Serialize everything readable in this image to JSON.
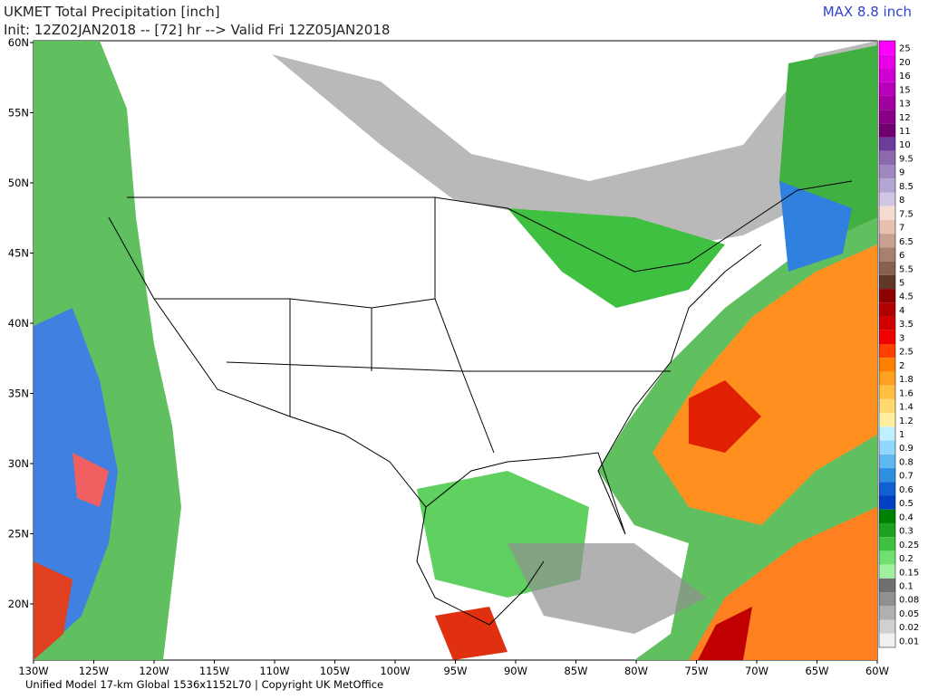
{
  "header": {
    "title": "UKMET Total Precipitation [inch]",
    "init": "Init: 12Z02JAN2018 -- [72] hr --> Valid Fri 12Z05JAN2018",
    "max": "MAX 8.8 inch"
  },
  "lat_labels": [
    "60N",
    "55N",
    "50N",
    "45N",
    "40N",
    "35N",
    "30N",
    "25N",
    "20N"
  ],
  "lon_labels": [
    "130W",
    "125W",
    "120W",
    "115W",
    "110W",
    "105W",
    "100W",
    "95W",
    "90W",
    "85W",
    "80W",
    "75W",
    "70W",
    "65W",
    "60W"
  ],
  "colorbar": {
    "labels": [
      "25",
      "20",
      "16",
      "15",
      "13",
      "12",
      "11",
      "10",
      "9.5",
      "9",
      "8.5",
      "8",
      "7.5",
      "7",
      "6.5",
      "6",
      "5.5",
      "5",
      "4.5",
      "4",
      "3.5",
      "3",
      "2.5",
      "2",
      "1.8",
      "1.6",
      "1.4",
      "1.2",
      "1",
      "0.9",
      "0.8",
      "0.7",
      "0.6",
      "0.5",
      "0.4",
      "0.3",
      "0.25",
      "0.2",
      "0.15",
      "0.1",
      "0.08",
      "0.05",
      "0.02",
      "0.01"
    ],
    "colors": [
      "#ff00ff",
      "#e800e8",
      "#d000d0",
      "#b800b8",
      "#a000a0",
      "#880088",
      "#700070",
      "#6a3d9a",
      "#8a6aaa",
      "#9f88bf",
      "#b4a6d2",
      "#d0c6e4",
      "#f4dcd0",
      "#e8c0b0",
      "#c8a090",
      "#a88070",
      "#886050",
      "#603828",
      "#8b0000",
      "#b00000",
      "#d00000",
      "#f00000",
      "#ff4000",
      "#ff8000",
      "#ffa020",
      "#ffc040",
      "#ffd870",
      "#fff0a0",
      "#c0f0ff",
      "#90d8ff",
      "#60b8f0",
      "#3090e0",
      "#1060d0",
      "#0040c0",
      "#008000",
      "#20a020",
      "#40c040",
      "#70e070",
      "#a0f0a0",
      "#707070",
      "#909090",
      "#b0b0b0",
      "#d0d0d0",
      "#f0f0f0"
    ]
  },
  "footer": "Unified Model 17-km Global 1536x1152L70 | Copyright UK MetOffice"
}
